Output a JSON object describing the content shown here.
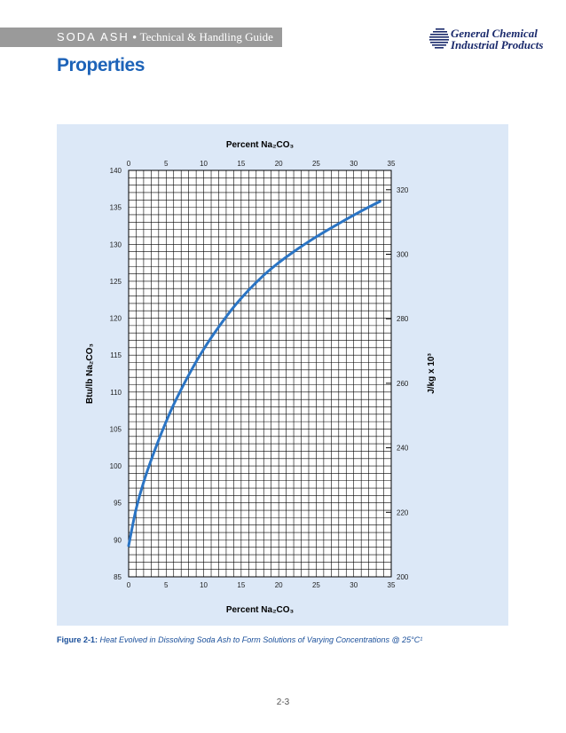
{
  "header": {
    "brand": "SODA ASH",
    "bullet": "•",
    "subtitle": "Technical & Handling Guide",
    "logo_line1": "General Chemical",
    "logo_line2": "Industrial Products"
  },
  "page_title": "Properties",
  "caption": {
    "label": "Figure 2-1:",
    "text": "Heat Evolved in Dissolving Soda Ash to Form Solutions of Varying Concentrations @ 25°C¹"
  },
  "page_number": "2-3",
  "colors": {
    "accent": "#1d63b8",
    "curve": "#2a74c4",
    "panel": "#dce8f7",
    "header_bar": "#9a9a9a"
  },
  "chart_data": {
    "type": "line",
    "xlabel_top": "Percent Na₂CO₃",
    "xlabel_bottom": "Percent Na₂CO₃",
    "ylabel_left": "Btu/lb Na₂CO₃",
    "ylabel_right": "J/kg x 10³",
    "xlim": [
      0,
      35
    ],
    "ylim": [
      85,
      140
    ],
    "y2lim": [
      200,
      326
    ],
    "x_ticks": [
      0,
      5,
      10,
      15,
      20,
      25,
      30,
      35
    ],
    "y_ticks": [
      85,
      90,
      95,
      100,
      105,
      110,
      115,
      120,
      125,
      130,
      135,
      140
    ],
    "y2_ticks": [
      200,
      220,
      240,
      260,
      280,
      300,
      320
    ],
    "grid": true,
    "series": [
      {
        "x": [
          0,
          1,
          2,
          3,
          4,
          5,
          6,
          8,
          10,
          12,
          14,
          16,
          18,
          20,
          22,
          25,
          28,
          31,
          33.5
        ],
        "values": [
          89.2,
          94.2,
          97.8,
          100.8,
          103.5,
          106,
          108.3,
          112.3,
          115.8,
          118.8,
          121.5,
          123.8,
          125.8,
          127.5,
          129,
          131,
          132.8,
          134.5,
          135.8
        ]
      }
    ]
  }
}
